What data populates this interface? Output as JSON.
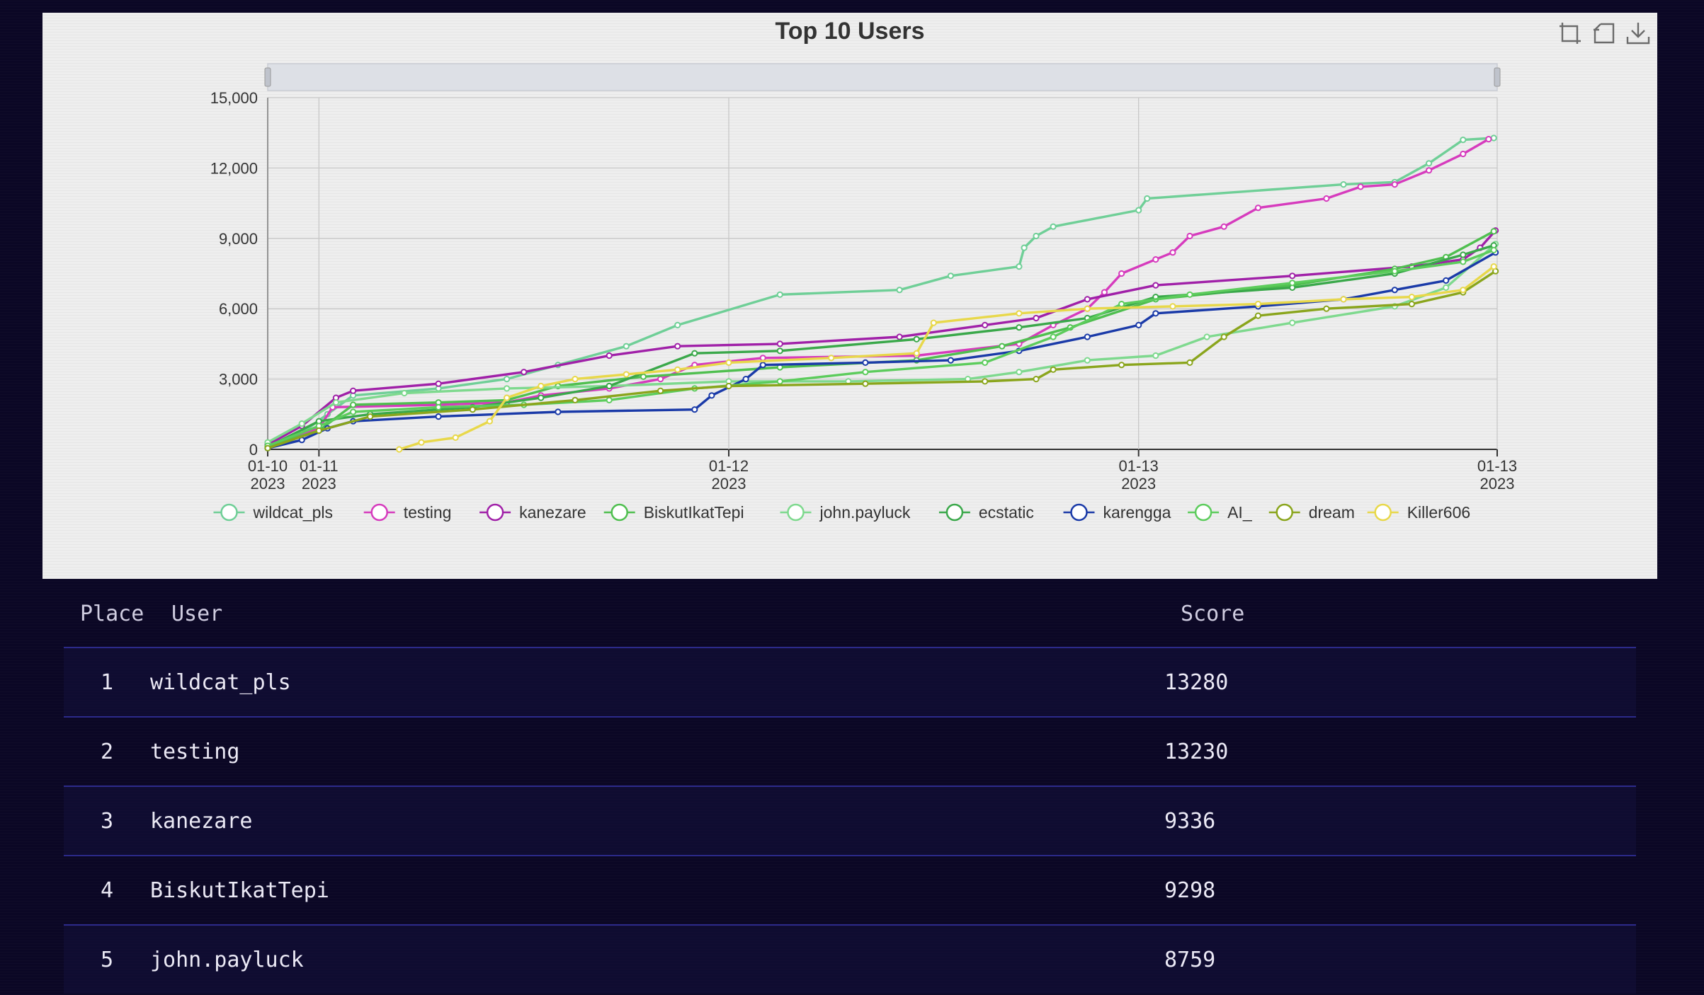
{
  "chart": {
    "toolbox": [
      {
        "name": "zoom-icon",
        "title": "Zoom"
      },
      {
        "name": "restore-icon",
        "title": "Restore"
      },
      {
        "name": "download-icon",
        "title": "Save as image"
      }
    ]
  },
  "chart_data": {
    "type": "line",
    "title": "Top 10 Users",
    "xlabel": "",
    "ylabel": "",
    "ylim": [
      0,
      15000
    ],
    "yticks": [
      0,
      3000,
      6000,
      9000,
      12000,
      15000
    ],
    "yticklabels": [
      "0",
      "3,000",
      "6,000",
      "9,000",
      "12,000",
      "15,000"
    ],
    "xlim": [
      0,
      72
    ],
    "xticks": [
      {
        "x": 0,
        "label": "01-10",
        "year": "2023"
      },
      {
        "x": 3,
        "label": "01-11",
        "year": "2023"
      },
      {
        "x": 27,
        "label": "01-12",
        "year": "2023"
      },
      {
        "x": 51,
        "label": "01-13",
        "year": "2023"
      },
      {
        "x": 72,
        "label": "01-13",
        "year": "2023"
      }
    ],
    "legend_position": "bottom",
    "grid": true,
    "data_zoom_slider": true,
    "series": [
      {
        "name": "wildcat_pls",
        "color": "#6fcf97",
        "points": [
          [
            0,
            100
          ],
          [
            2,
            700
          ],
          [
            3.5,
            1500
          ],
          [
            5,
            2300
          ],
          [
            10,
            2600
          ],
          [
            14,
            3000
          ],
          [
            17,
            3600
          ],
          [
            21,
            4400
          ],
          [
            24,
            5300
          ],
          [
            30,
            6600
          ],
          [
            37,
            6800
          ],
          [
            40,
            7400
          ],
          [
            44,
            7800
          ],
          [
            44.3,
            8600
          ],
          [
            45,
            9100
          ],
          [
            46,
            9500
          ],
          [
            51,
            10200
          ],
          [
            51.5,
            10700
          ],
          [
            63,
            11300
          ],
          [
            66,
            11400
          ],
          [
            68,
            12200
          ],
          [
            70,
            13200
          ],
          [
            71.8,
            13280
          ]
        ]
      },
      {
        "name": "testing",
        "color": "#d63bbd",
        "points": [
          [
            0,
            200
          ],
          [
            3,
            900
          ],
          [
            3.8,
            1800
          ],
          [
            10,
            1900
          ],
          [
            14,
            2000
          ],
          [
            16,
            2300
          ],
          [
            20,
            2600
          ],
          [
            23,
            3000
          ],
          [
            25,
            3600
          ],
          [
            29,
            3900
          ],
          [
            38,
            4000
          ],
          [
            44,
            4500
          ],
          [
            46,
            5300
          ],
          [
            48,
            6000
          ],
          [
            49,
            6700
          ],
          [
            50,
            7500
          ],
          [
            52,
            8100
          ],
          [
            53,
            8400
          ],
          [
            54,
            9100
          ],
          [
            56,
            9500
          ],
          [
            58,
            10300
          ],
          [
            62,
            10700
          ],
          [
            64,
            11200
          ],
          [
            66,
            11300
          ],
          [
            68,
            11900
          ],
          [
            70,
            12600
          ],
          [
            71.5,
            13230
          ]
        ]
      },
      {
        "name": "kanezare",
        "color": "#a020a8",
        "points": [
          [
            0,
            200
          ],
          [
            2,
            1000
          ],
          [
            4,
            2200
          ],
          [
            5,
            2500
          ],
          [
            10,
            2800
          ],
          [
            15,
            3300
          ],
          [
            20,
            4000
          ],
          [
            24,
            4400
          ],
          [
            30,
            4500
          ],
          [
            37,
            4800
          ],
          [
            42,
            5300
          ],
          [
            45,
            5600
          ],
          [
            48,
            6400
          ],
          [
            52,
            7000
          ],
          [
            60,
            7400
          ],
          [
            67,
            7800
          ],
          [
            70,
            8100
          ],
          [
            71,
            8600
          ],
          [
            71.9,
            9336
          ]
        ]
      },
      {
        "name": "BiskutIkatTepi",
        "color": "#4fbf4f",
        "points": [
          [
            0,
            150
          ],
          [
            3,
            800
          ],
          [
            5,
            1900
          ],
          [
            10,
            2000
          ],
          [
            14,
            2100
          ],
          [
            17,
            2700
          ],
          [
            22,
            3100
          ],
          [
            30,
            3500
          ],
          [
            38,
            3800
          ],
          [
            43,
            4400
          ],
          [
            47,
            5200
          ],
          [
            52,
            6400
          ],
          [
            60,
            7000
          ],
          [
            66,
            7700
          ],
          [
            69,
            8200
          ],
          [
            71.8,
            9298
          ]
        ]
      },
      {
        "name": "john.payluck",
        "color": "#7ed98e",
        "points": [
          [
            0,
            300
          ],
          [
            2,
            1100
          ],
          [
            4,
            2000
          ],
          [
            8,
            2400
          ],
          [
            14,
            2600
          ],
          [
            20,
            2700
          ],
          [
            27,
            2900
          ],
          [
            34,
            2900
          ],
          [
            41,
            3000
          ],
          [
            44,
            3300
          ],
          [
            48,
            3800
          ],
          [
            52,
            4000
          ],
          [
            55,
            4800
          ],
          [
            60,
            5400
          ],
          [
            66,
            6100
          ],
          [
            69,
            6900
          ],
          [
            71.9,
            8759
          ]
        ]
      },
      {
        "name": "ecstatic",
        "color": "#3aa84a",
        "points": [
          [
            0,
            100
          ],
          [
            3,
            1200
          ],
          [
            6,
            1500
          ],
          [
            12,
            1800
          ],
          [
            16,
            2200
          ],
          [
            20,
            2700
          ],
          [
            25,
            4100
          ],
          [
            30,
            4200
          ],
          [
            38,
            4700
          ],
          [
            44,
            5200
          ],
          [
            48,
            5600
          ],
          [
            52,
            6500
          ],
          [
            60,
            6900
          ],
          [
            66,
            7500
          ],
          [
            70,
            8300
          ],
          [
            71.8,
            8700
          ]
        ]
      },
      {
        "name": "karengga",
        "color": "#1a3aa8",
        "points": [
          [
            0,
            50
          ],
          [
            2,
            400
          ],
          [
            3.5,
            900
          ],
          [
            5,
            1200
          ],
          [
            10,
            1400
          ],
          [
            17,
            1600
          ],
          [
            25,
            1700
          ],
          [
            26,
            2300
          ],
          [
            28,
            3000
          ],
          [
            29,
            3600
          ],
          [
            35,
            3700
          ],
          [
            40,
            3800
          ],
          [
            44,
            4200
          ],
          [
            48,
            4800
          ],
          [
            51,
            5300
          ],
          [
            52,
            5800
          ],
          [
            58,
            6100
          ],
          [
            63,
            6400
          ],
          [
            66,
            6800
          ],
          [
            69,
            7200
          ],
          [
            71.9,
            8400
          ]
        ]
      },
      {
        "name": "AI_",
        "color": "#5ccc5c",
        "points": [
          [
            0,
            150
          ],
          [
            3,
            1000
          ],
          [
            5,
            1600
          ],
          [
            10,
            1800
          ],
          [
            15,
            1900
          ],
          [
            20,
            2100
          ],
          [
            25,
            2600
          ],
          [
            30,
            2900
          ],
          [
            35,
            3300
          ],
          [
            42,
            3700
          ],
          [
            46,
            4800
          ],
          [
            50,
            6200
          ],
          [
            54,
            6600
          ],
          [
            60,
            7100
          ],
          [
            66,
            7600
          ],
          [
            70,
            8000
          ],
          [
            71.8,
            8500
          ]
        ]
      },
      {
        "name": "dream",
        "color": "#8aa51c",
        "points": [
          [
            0,
            50
          ],
          [
            3,
            800
          ],
          [
            6,
            1400
          ],
          [
            12,
            1700
          ],
          [
            18,
            2100
          ],
          [
            23,
            2500
          ],
          [
            27,
            2700
          ],
          [
            35,
            2800
          ],
          [
            42,
            2900
          ],
          [
            45,
            3000
          ],
          [
            46,
            3400
          ],
          [
            50,
            3600
          ],
          [
            54,
            3700
          ],
          [
            56,
            4800
          ],
          [
            58,
            5700
          ],
          [
            62,
            6000
          ],
          [
            67,
            6200
          ],
          [
            70,
            6700
          ],
          [
            71.9,
            7600
          ]
        ]
      },
      {
        "name": "Killer606",
        "color": "#e8d84a",
        "points": [
          [
            7.7,
            0
          ],
          [
            9,
            300
          ],
          [
            11,
            500
          ],
          [
            13,
            1200
          ],
          [
            14,
            2200
          ],
          [
            16,
            2700
          ],
          [
            18,
            3000
          ],
          [
            21,
            3200
          ],
          [
            24,
            3400
          ],
          [
            27,
            3700
          ],
          [
            33,
            3900
          ],
          [
            38,
            4100
          ],
          [
            39,
            5400
          ],
          [
            44,
            5800
          ],
          [
            48,
            6000
          ],
          [
            53,
            6100
          ],
          [
            58,
            6200
          ],
          [
            63,
            6400
          ],
          [
            67,
            6500
          ],
          [
            70,
            6800
          ],
          [
            71.8,
            7800
          ]
        ]
      }
    ]
  },
  "leaderboard": {
    "headers": {
      "place": "Place",
      "user": "User",
      "score": "Score"
    },
    "rows": [
      {
        "place": "1",
        "user": "wildcat_pls",
        "score": "13280"
      },
      {
        "place": "2",
        "user": "testing",
        "score": "13230"
      },
      {
        "place": "3",
        "user": "kanezare",
        "score": "9336"
      },
      {
        "place": "4",
        "user": "BiskutIkatTepi",
        "score": "9298"
      },
      {
        "place": "5",
        "user": "john.payluck",
        "score": "8759"
      }
    ]
  }
}
